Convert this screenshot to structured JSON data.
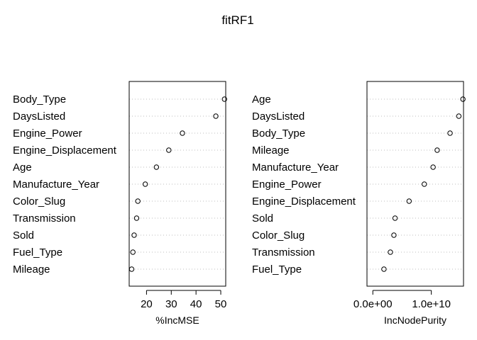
{
  "title": "fitRF1",
  "chart_data": [
    {
      "type": "scatter",
      "subtype": "dotchart",
      "title": "",
      "xlabel": "%IncMSE",
      "ylabel": "",
      "xlim": [
        13,
        52
      ],
      "xticks": [
        20,
        30,
        40,
        50
      ],
      "xtick_labels": [
        "20",
        "30",
        "40",
        "50"
      ],
      "grid": "dotted horizontal",
      "categories": [
        "Body_Type",
        "DaysListed",
        "Engine_Power",
        "Engine_Displacement",
        "Age",
        "Manufacture_Year",
        "Color_Slug",
        "Transmission",
        "Sold",
        "Fuel_Type",
        "Mileage"
      ],
      "values": [
        51.5,
        48.0,
        34.5,
        29.0,
        24.0,
        19.5,
        16.5,
        16.0,
        15.0,
        14.5,
        14.0
      ]
    },
    {
      "type": "scatter",
      "subtype": "dotchart",
      "title": "",
      "xlabel": "IncNodePurity",
      "ylabel": "",
      "xlim": [
        -1000000000.0,
        15500000000.0
      ],
      "xticks": [
        0,
        10000000000.0
      ],
      "xtick_labels": [
        "0.0e+00",
        "1.0e+10"
      ],
      "grid": "dotted horizontal",
      "categories": [
        "Age",
        "DaysListed",
        "Body_Type",
        "Mileage",
        "Manufacture_Year",
        "Engine_Power",
        "Engine_Displacement",
        "Sold",
        "Color_Slug",
        "Transmission",
        "Fuel_Type"
      ],
      "values": [
        15400000000.0,
        14700000000.0,
        13200000000.0,
        11000000000.0,
        10300000000.0,
        8800000000.0,
        6200000000.0,
        3800000000.0,
        3600000000.0,
        3000000000.0,
        1900000000.0
      ]
    }
  ]
}
